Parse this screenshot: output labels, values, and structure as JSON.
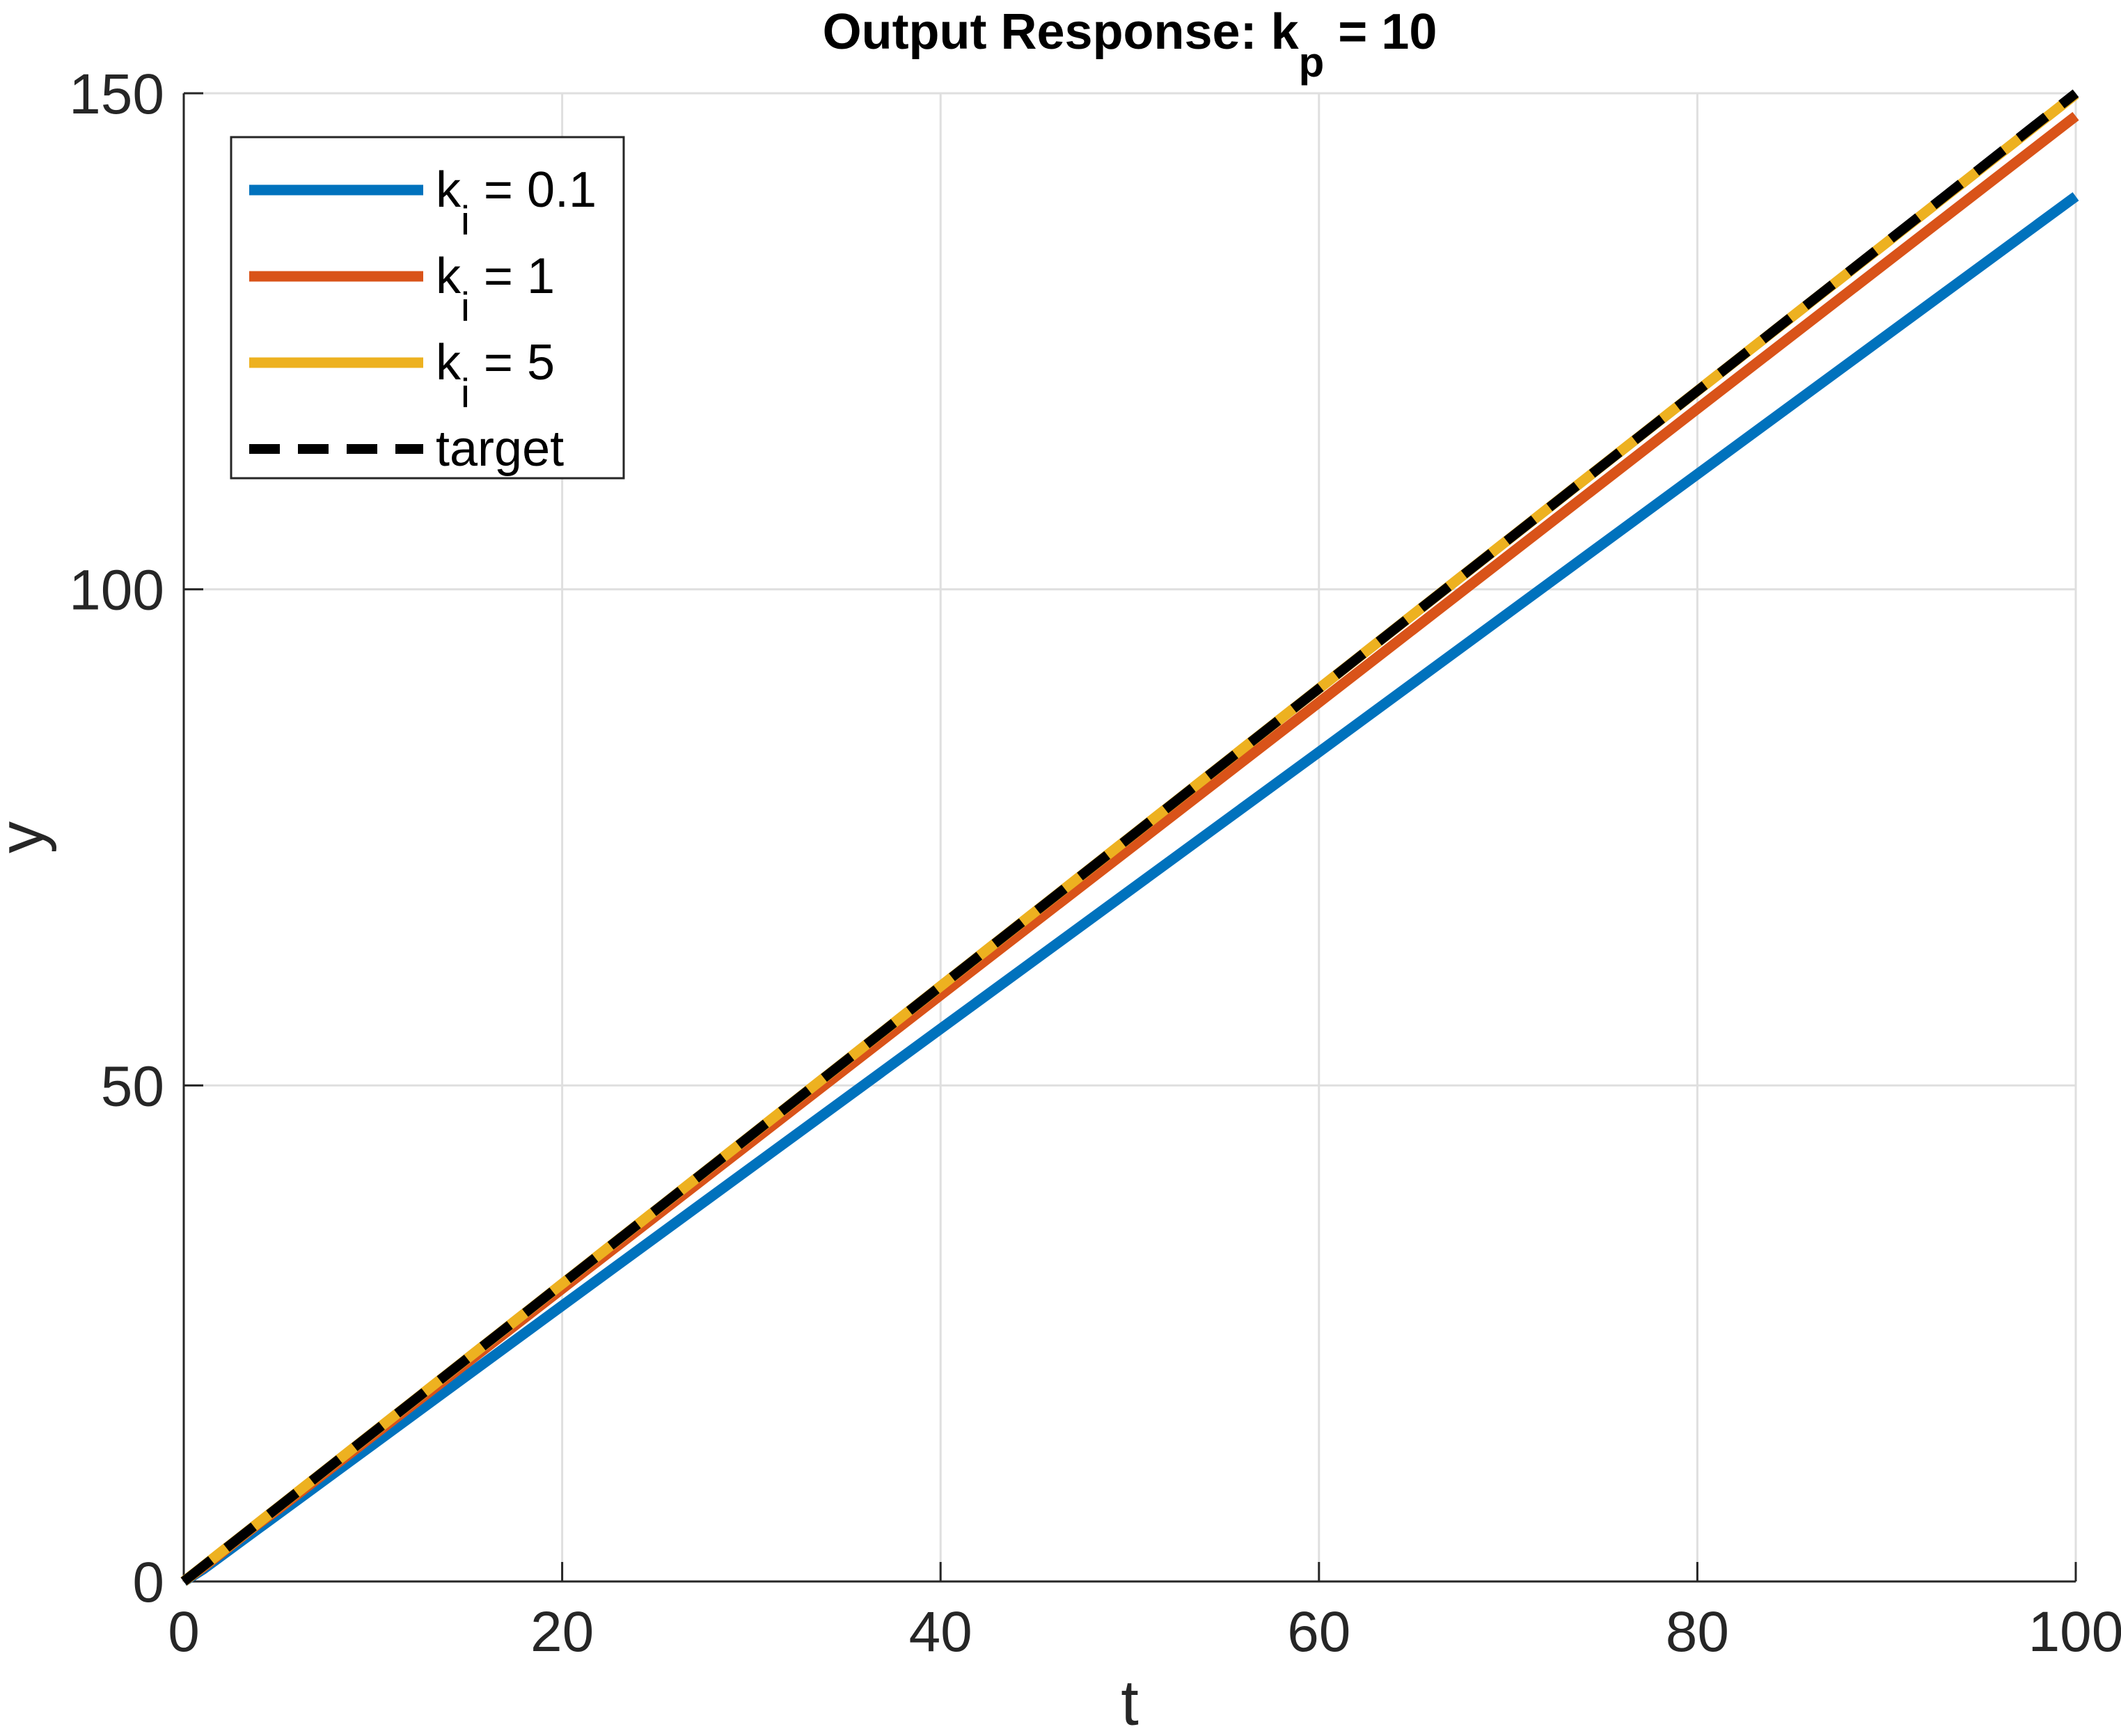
{
  "chart_data": {
    "type": "line",
    "title": {
      "main": "Output Response: k",
      "sub": "p",
      "rest": " = 10"
    },
    "xlabel": "t",
    "ylabel": "y",
    "xlim": [
      0,
      100
    ],
    "ylim": [
      0,
      150
    ],
    "xticks": [
      0,
      20,
      40,
      60,
      80,
      100
    ],
    "yticks": [
      0,
      50,
      100,
      150
    ],
    "xtick_labels": [
      "0",
      "20",
      "40",
      "60",
      "80",
      "100"
    ],
    "ytick_labels": [
      "0",
      "50",
      "100",
      "150"
    ],
    "grid": true,
    "legend_position": "top-left",
    "series": [
      {
        "name": "k",
        "name_sub": "i",
        "name_rest": " = 0.1",
        "color": "#0072BD",
        "style": "solid",
        "x": [
          0,
          1,
          2,
          3,
          4,
          5,
          10,
          20,
          40,
          60,
          80,
          100
        ],
        "y": [
          0,
          1.2,
          2.6,
          4.0,
          5.4,
          6.8,
          13.8,
          27.8,
          55.7,
          83.6,
          111.6,
          139.6
        ]
      },
      {
        "name": "k",
        "name_sub": "i",
        "name_rest": " = 1",
        "color": "#D95319",
        "style": "solid",
        "x": [
          0,
          1,
          2,
          3,
          4,
          5,
          10,
          20,
          40,
          60,
          80,
          100
        ],
        "y": [
          0,
          1.4,
          2.9,
          4.4,
          5.9,
          7.3,
          14.7,
          29.5,
          59.1,
          88.6,
          118.2,
          147.7
        ]
      },
      {
        "name": "k",
        "name_sub": "i",
        "name_rest": " = 5",
        "color": "#EDB120",
        "style": "solid",
        "x": [
          0,
          1,
          2,
          3,
          4,
          5,
          10,
          20,
          40,
          60,
          80,
          100
        ],
        "y": [
          0,
          1.5,
          3.0,
          4.5,
          6.0,
          7.5,
          15.0,
          30.0,
          60.0,
          90.0,
          120.0,
          149.9
        ]
      },
      {
        "name": "target",
        "name_sub": "",
        "name_rest": "",
        "color": "#000000",
        "style": "dashed",
        "x": [
          0,
          100
        ],
        "y": [
          0,
          150
        ]
      }
    ]
  }
}
